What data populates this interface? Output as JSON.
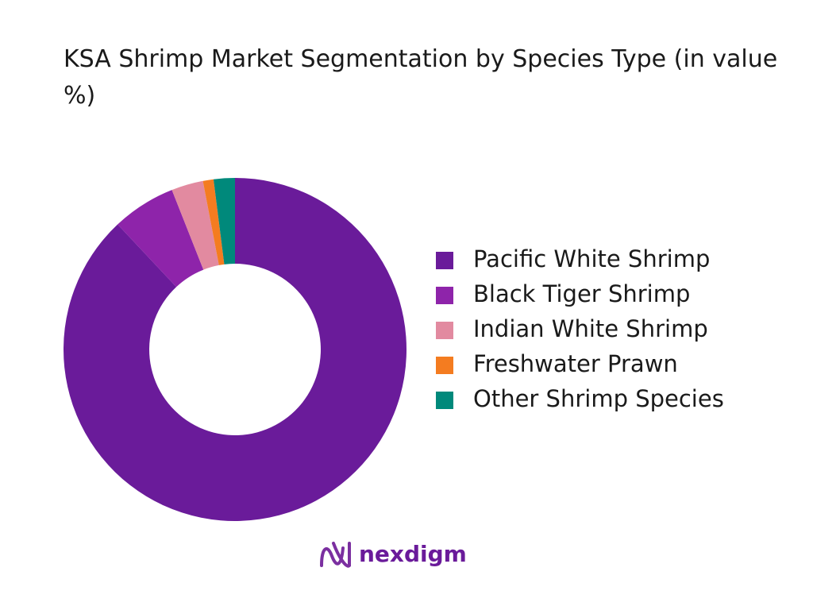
{
  "chart_data": {
    "type": "donut",
    "title": "KSA Shrimp Market Segmentation by Species Type (in value %)",
    "categories": [
      "Pacific White Shrimp",
      "Black Tiger Shrimp",
      "Indian White Shrimp",
      "Freshwater Prawn",
      "Other Shrimp Species"
    ],
    "values": [
      88,
      6,
      3,
      1,
      2
    ],
    "colors": [
      "#6a1b9a",
      "#8e24aa",
      "#e28aa0",
      "#f47c20",
      "#00897b"
    ],
    "legend": "right"
  },
  "logo": "nexdigm"
}
